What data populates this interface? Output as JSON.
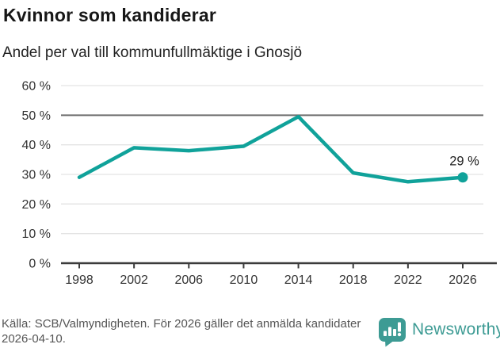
{
  "header": {
    "title": "Kvinnor som kandiderar",
    "subtitle": "Andel per val till kommunfullmäktige i Gnosjö"
  },
  "footer": {
    "source": "Källa: SCB/Valmyndigheten. För 2026 gäller det anmälda kandidater 2026-04-10.",
    "brand": "Newsworthy"
  },
  "colors": {
    "line": "#10a29a",
    "brand": "#3d9b94",
    "grid": "#e3e3e3",
    "grid_emphasis": "#6e6e6e",
    "axis": "#3b3b3b",
    "tick_text": "#333333",
    "label_text": "#222222"
  },
  "chart_data": {
    "type": "line",
    "title": "Kvinnor som kandiderar",
    "subtitle": "Andel per val till kommunfullmäktige i Gnosjö",
    "x": [
      1998,
      2002,
      2006,
      2010,
      2014,
      2018,
      2022,
      2026
    ],
    "values": [
      29,
      39,
      38,
      39.5,
      49.5,
      30.5,
      27.5,
      29
    ],
    "xlabel": "",
    "ylabel": "",
    "ylim": [
      0,
      60
    ],
    "yticks": [
      0,
      10,
      20,
      30,
      40,
      50,
      60
    ],
    "ytick_suffix": " %",
    "grid": "horizontal",
    "emphasized_gridline": 50,
    "end_label": "29 %",
    "legend": "none",
    "marker": "circle-on-last-point"
  }
}
